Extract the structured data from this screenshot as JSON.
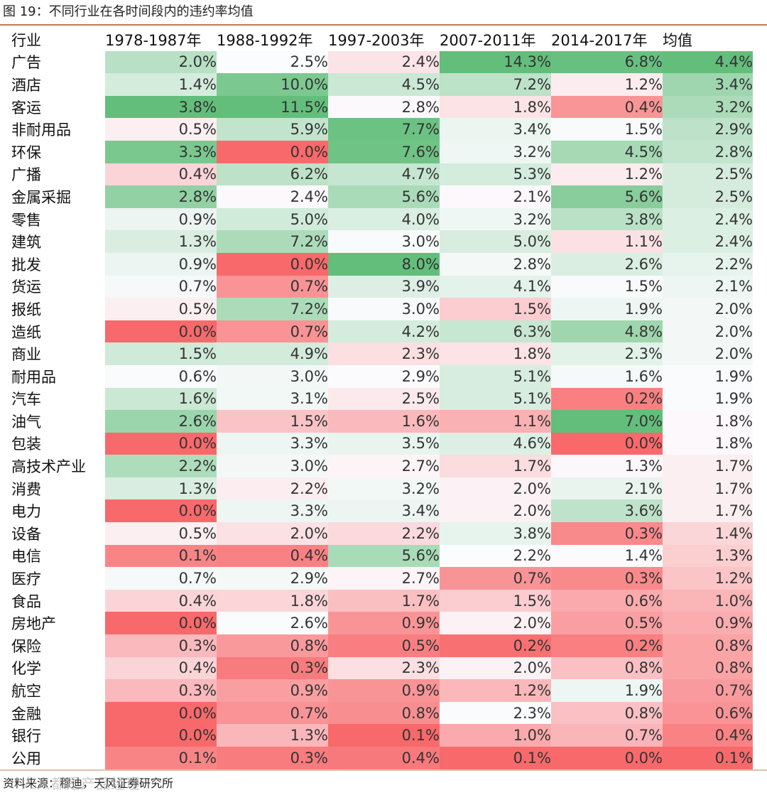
{
  "title": "图 19：不同行业在各时间段内的违约率均值",
  "source": "资料来源：穆迪，天风证券研究所",
  "watermark": "人人都是产品经理",
  "colors": {
    "high": "#63be7b",
    "mid": "#fcfcff",
    "low": "#f8696b",
    "rule": "#c07a55"
  },
  "table": {
    "headers": [
      "行业",
      "1978-1987年",
      "1988-1992年",
      "1997-2003年",
      "2007-2011年",
      "2014-2017年",
      "均值"
    ],
    "rows": [
      [
        "广告",
        "2.0%",
        "2.5%",
        "2.4%",
        "14.3%",
        "6.8%",
        "4.4%"
      ],
      [
        "酒店",
        "1.4%",
        "10.0%",
        "4.5%",
        "7.2%",
        "1.2%",
        "3.4%"
      ],
      [
        "客运",
        "3.8%",
        "11.5%",
        "2.8%",
        "1.8%",
        "0.4%",
        "3.2%"
      ],
      [
        "非耐用品",
        "0.5%",
        "5.9%",
        "7.7%",
        "3.4%",
        "1.5%",
        "2.9%"
      ],
      [
        "环保",
        "3.3%",
        "0.0%",
        "7.6%",
        "3.2%",
        "4.5%",
        "2.8%"
      ],
      [
        "广播",
        "0.4%",
        "6.2%",
        "4.7%",
        "5.3%",
        "1.2%",
        "2.5%"
      ],
      [
        "金属采掘",
        "2.8%",
        "2.4%",
        "5.6%",
        "2.1%",
        "5.6%",
        "2.5%"
      ],
      [
        "零售",
        "0.9%",
        "5.0%",
        "4.0%",
        "3.2%",
        "3.8%",
        "2.4%"
      ],
      [
        "建筑",
        "1.3%",
        "7.2%",
        "3.0%",
        "5.0%",
        "1.1%",
        "2.4%"
      ],
      [
        "批发",
        "0.9%",
        "0.0%",
        "8.0%",
        "2.8%",
        "2.6%",
        "2.2%"
      ],
      [
        "货运",
        "0.7%",
        "0.7%",
        "3.9%",
        "4.1%",
        "1.5%",
        "2.1%"
      ],
      [
        "报纸",
        "0.5%",
        "7.2%",
        "3.0%",
        "1.5%",
        "1.9%",
        "2.0%"
      ],
      [
        "造纸",
        "0.0%",
        "0.7%",
        "4.2%",
        "6.3%",
        "4.8%",
        "2.0%"
      ],
      [
        "商业",
        "1.5%",
        "4.9%",
        "2.3%",
        "1.8%",
        "2.3%",
        "2.0%"
      ],
      [
        "耐用品",
        "0.6%",
        "3.0%",
        "2.9%",
        "5.1%",
        "1.6%",
        "1.9%"
      ],
      [
        "汽车",
        "1.6%",
        "3.1%",
        "2.5%",
        "5.1%",
        "0.2%",
        "1.9%"
      ],
      [
        "油气",
        "2.6%",
        "1.5%",
        "1.6%",
        "1.1%",
        "7.0%",
        "1.8%"
      ],
      [
        "包装",
        "0.0%",
        "3.3%",
        "3.5%",
        "4.6%",
        "0.0%",
        "1.8%"
      ],
      [
        "高技术产业",
        "2.2%",
        "3.0%",
        "2.7%",
        "1.7%",
        "1.3%",
        "1.7%"
      ],
      [
        "消费",
        "1.3%",
        "2.2%",
        "3.2%",
        "2.0%",
        "2.1%",
        "1.7%"
      ],
      [
        "电力",
        "0.0%",
        "3.3%",
        "3.4%",
        "2.0%",
        "3.6%",
        "1.7%"
      ],
      [
        "设备",
        "0.5%",
        "2.0%",
        "2.2%",
        "3.8%",
        "0.3%",
        "1.4%"
      ],
      [
        "电信",
        "0.1%",
        "0.4%",
        "5.6%",
        "2.2%",
        "1.4%",
        "1.3%"
      ],
      [
        "医疗",
        "0.7%",
        "2.9%",
        "2.7%",
        "0.7%",
        "0.3%",
        "1.2%"
      ],
      [
        "食品",
        "0.4%",
        "1.8%",
        "1.7%",
        "1.5%",
        "0.6%",
        "1.0%"
      ],
      [
        "房地产",
        "0.0%",
        "2.6%",
        "0.9%",
        "2.0%",
        "0.5%",
        "0.9%"
      ],
      [
        "保险",
        "0.3%",
        "0.8%",
        "0.5%",
        "0.2%",
        "0.2%",
        "0.8%"
      ],
      [
        "化学",
        "0.4%",
        "0.3%",
        "2.3%",
        "2.0%",
        "0.8%",
        "0.8%"
      ],
      [
        "航空",
        "0.3%",
        "0.9%",
        "0.9%",
        "1.2%",
        "1.9%",
        "0.7%"
      ],
      [
        "金融",
        "0.0%",
        "0.7%",
        "0.8%",
        "2.3%",
        "0.8%",
        "0.6%"
      ],
      [
        "银行",
        "0.0%",
        "1.3%",
        "0.1%",
        "1.0%",
        "0.7%",
        "0.4%"
      ],
      [
        "公用",
        "0.1%",
        "0.3%",
        "0.4%",
        "0.1%",
        "0.0%",
        "0.1%"
      ]
    ]
  }
}
